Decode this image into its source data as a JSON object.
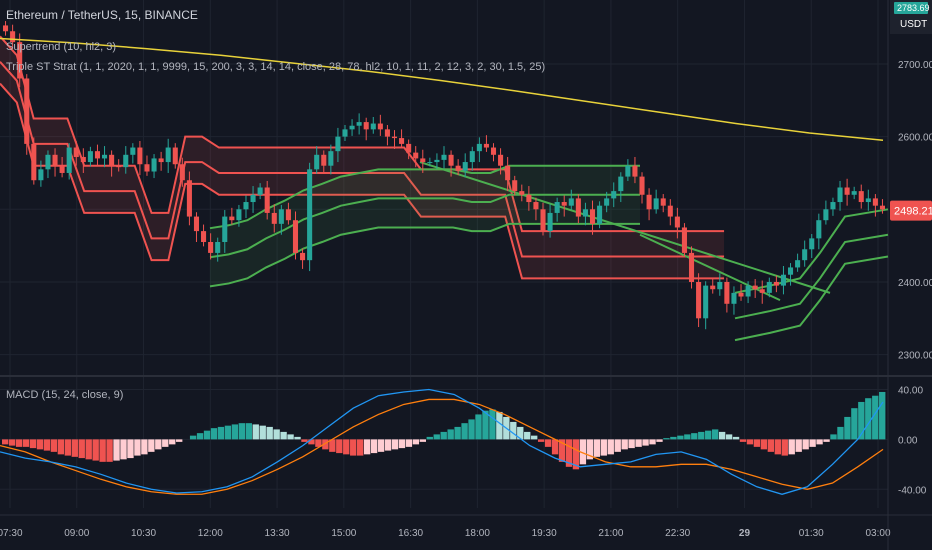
{
  "header": {
    "symbol_title": "Ethereum / TetherUS, 15, BINANCE",
    "indicator_supertrend": "Supertrend (10, hl2, 3)",
    "indicator_strategy": "Triple ST Strat (1, 1, 2020, 1, 1, 9999, 15, 200, 3, 3, 14, 14, close, 28, 78, hl2, 10, 1, 11, 2, 12, 3, 2, 30, 1.5, 25)",
    "indicator_macd": "MACD (15, 24, close, 9)"
  },
  "price_badges": {
    "current_price": "2498.21",
    "top_price": "2783.69",
    "top_currency": "USDT"
  },
  "colors": {
    "background": "#131722",
    "grid": "#1f2430",
    "up": "#26a69a",
    "down": "#ef5350",
    "st_red": "#ef5350",
    "st_green": "#4caf50",
    "ema": "#e8d23a",
    "macd_line": "#2196f3",
    "signal_line": "#ff7f0e",
    "hist_up_strong": "#26a69a",
    "hist_up_weak": "#b2dfdb",
    "hist_down_strong": "#ef5350",
    "hist_down_weak": "#ffcdd2",
    "badge_bg": "#ef5350"
  },
  "chart_data": [
    {
      "type": "line",
      "title": "Ethereum / TetherUS, 15, BINANCE",
      "x_ticks": [
        "07:30",
        "09:00",
        "10:30",
        "12:00",
        "13:30",
        "15:00",
        "16:30",
        "18:00",
        "19:30",
        "21:00",
        "22:30",
        "29",
        "01:30",
        "03:00"
      ],
      "y_ticks": [
        "2300.00",
        "2400.00",
        "2500.00",
        "2600.00",
        "2700.00"
      ],
      "ylim": [
        2272,
        2788
      ],
      "candles_close": [
        2745,
        2730,
        2680,
        2590,
        2540,
        2555,
        2575,
        2560,
        2550,
        2585,
        2572,
        2565,
        2580,
        2570,
        2575,
        2560,
        2558,
        2575,
        2585,
        2562,
        2552,
        2570,
        2565,
        2585,
        2562,
        2540,
        2490,
        2470,
        2455,
        2440,
        2455,
        2490,
        2485,
        2500,
        2510,
        2520,
        2530,
        2495,
        2480,
        2500,
        2485,
        2440,
        2430,
        2555,
        2575,
        2560,
        2580,
        2600,
        2610,
        2615,
        2620,
        2610,
        2618,
        2610,
        2600,
        2598,
        2590,
        2578,
        2570,
        2565,
        2565,
        2568,
        2575,
        2560,
        2553,
        2565,
        2580,
        2590,
        2585,
        2575,
        2560,
        2540,
        2525,
        2520,
        2510,
        2500,
        2470,
        2495,
        2510,
        2505,
        2515,
        2490,
        2500,
        2480,
        2505,
        2515,
        2525,
        2545,
        2560,
        2545,
        2520,
        2500,
        2515,
        2505,
        2490,
        2475,
        2440,
        2400,
        2350,
        2395,
        2390,
        2400,
        2370,
        2385,
        2380,
        2395,
        2390,
        2385,
        2400,
        2395,
        2410,
        2420,
        2430,
        2445,
        2460,
        2485,
        2500,
        2510,
        2530,
        2520,
        2525,
        2510,
        2515,
        2505,
        2500
      ],
      "series": [
        {
          "name": "EMA",
          "values": [
            2735,
            2729,
            2721,
            2712,
            2701,
            2690,
            2677,
            2663,
            2648,
            2633,
            2618,
            2605,
            2595
          ]
        },
        {
          "name": "ST red 1",
          "values": [
            2738,
            2712,
            2625,
            2625,
            2625,
            2560,
            2560,
            2560,
            2560,
            2495,
            2495,
            2600,
            2600,
            2585,
            2585,
            2585,
            2585,
            2585,
            2585,
            2585,
            2585,
            2585,
            2585,
            2585,
            2585,
            2555,
            2555,
            2555,
            2555,
            2555,
            2555,
            2470,
            2470,
            2470,
            2470,
            2470,
            2470,
            2470,
            2470,
            2470,
            2470,
            2470,
            2470,
            2470
          ]
        },
        {
          "name": "ST green 1",
          "values": [
            2474,
            2478,
            2485,
            2500,
            2512,
            2526,
            2535,
            2545,
            2550,
            2555,
            2555,
            2555,
            2555,
            2555,
            2550,
            2550,
            2560,
            2560,
            2560,
            2560,
            2560,
            2560,
            2560,
            2560
          ]
        },
        {
          "name": "MACD",
          "values": [
            -10,
            -15,
            -18,
            -22,
            -28,
            -35,
            -40,
            -43,
            -42,
            -38,
            -30,
            -18,
            -5,
            10,
            25,
            35,
            38,
            40,
            36,
            25,
            10,
            -5,
            -15,
            -22,
            -20,
            -18,
            -12,
            -10,
            -16,
            -28,
            -38,
            -44,
            -38,
            -20,
            0,
            30
          ]
        },
        {
          "name": "Signal",
          "values": [
            -5,
            -10,
            -18,
            -25,
            -32,
            -38,
            -42,
            -44,
            -44,
            -40,
            -33,
            -24,
            -14,
            -2,
            10,
            20,
            28,
            32,
            32,
            28,
            20,
            10,
            0,
            -10,
            -18,
            -22,
            -22,
            -20,
            -20,
            -24,
            -30,
            -36,
            -40,
            -35,
            -22,
            -8
          ]
        }
      ]
    },
    {
      "type": "bar",
      "title": "MACD (15, 24, close, 9)",
      "y_ticks": [
        "40.00",
        "0.00",
        "-40.00"
      ],
      "ylim": [
        -55,
        50
      ],
      "values": [
        -4,
        -5,
        -6,
        -6,
        -7,
        -8,
        -9,
        -10,
        -12,
        -13,
        -14,
        -15,
        -16,
        -17,
        -18,
        -18,
        -17,
        -16,
        -15,
        -13,
        -12,
        -10,
        -8,
        -6,
        -4,
        -2,
        0,
        3,
        5,
        7,
        9,
        10,
        11,
        12,
        13,
        13,
        12,
        11,
        10,
        8,
        6,
        4,
        2,
        -2,
        -4,
        -6,
        -8,
        -10,
        -11,
        -12,
        -13,
        -13,
        -12,
        -11,
        -10,
        -9,
        -8,
        -7,
        -6,
        -4,
        -2,
        2,
        4,
        6,
        8,
        10,
        13,
        16,
        20,
        23,
        24,
        22,
        18,
        14,
        10,
        6,
        3,
        -2,
        -6,
        -12,
        -18,
        -22,
        -24,
        -20,
        -16,
        -14,
        -13,
        -12,
        -10,
        -8,
        -7,
        -6,
        -5,
        -4,
        -2,
        1,
        2,
        3,
        4,
        5,
        6,
        7,
        8,
        6,
        4,
        2,
        -2,
        -4,
        -6,
        -8,
        -10,
        -12,
        -13,
        -12,
        -10,
        -8,
        -6,
        -4,
        -2,
        4,
        10,
        18,
        25,
        30,
        33,
        35,
        38
      ]
    }
  ]
}
